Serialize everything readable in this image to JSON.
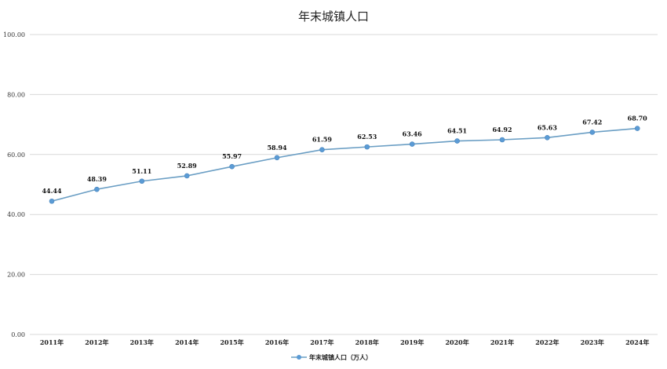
{
  "chart_data": {
    "type": "line",
    "title": "年末城镇人口",
    "categories": [
      "2011年",
      "2012年",
      "2013年",
      "2014年",
      "2015年",
      "2016年",
      "2017年",
      "2018年",
      "2019年",
      "2020年",
      "2021年",
      "2022年",
      "2023年",
      "2024年"
    ],
    "series": [
      {
        "name": "年末城镇人口（万人）",
        "values": [
          44.44,
          48.39,
          51.11,
          52.89,
          55.97,
          58.94,
          61.59,
          62.53,
          63.46,
          64.51,
          64.92,
          65.63,
          67.42,
          68.7
        ],
        "data_labels": [
          "44.44",
          "48.39",
          "51.11",
          "52.89",
          "55.97",
          "58.94",
          "61.59",
          "62.53",
          "63.46",
          "64.51",
          "64.92",
          "65.63",
          "67.42",
          "68.70"
        ]
      }
    ],
    "ylim": [
      0,
      100
    ],
    "yticks": [
      "0.00",
      "20.00",
      "40.00",
      "60.00",
      "80.00",
      "100.00"
    ],
    "ytick_values": [
      0,
      20,
      40,
      60,
      80,
      100
    ],
    "grid": true,
    "legend_position": "bottom",
    "colors": {
      "series": "#5b9bd5",
      "line": "#6a9ec4",
      "grid": "#d9d9d9"
    }
  }
}
